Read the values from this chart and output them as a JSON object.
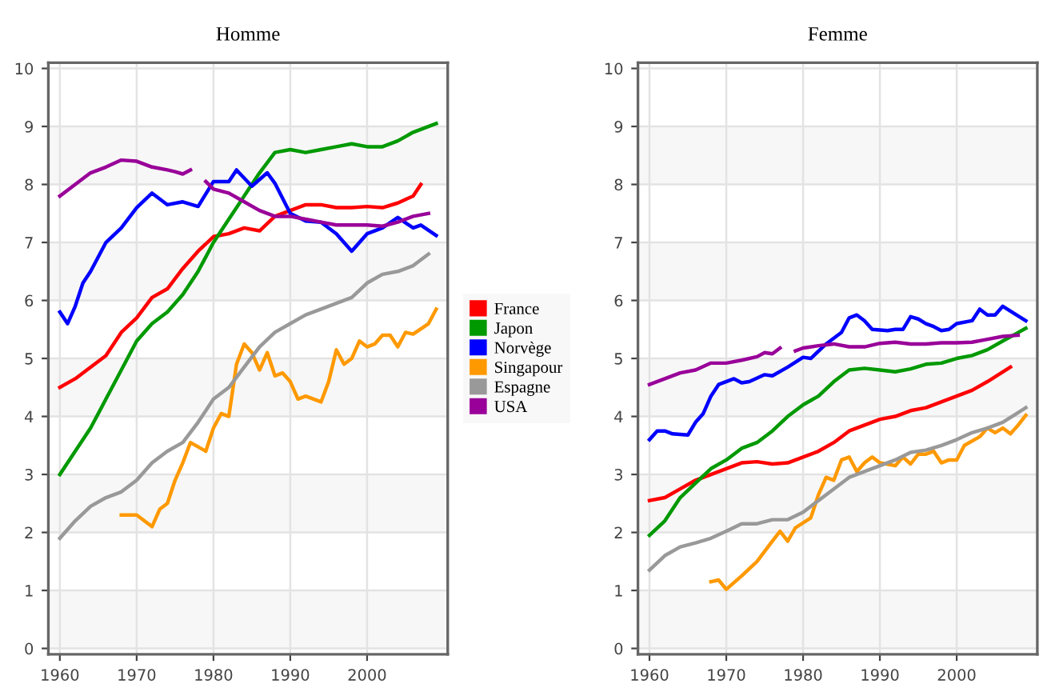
{
  "chart_data": [
    {
      "type": "line",
      "title": "Homme",
      "xlim": [
        1958.5,
        2010.5
      ],
      "ylim": [
        -0.1,
        10.1
      ],
      "xticks": [
        1960,
        1970,
        1980,
        1990,
        2000
      ],
      "yticks": [
        0,
        1,
        2,
        3,
        4,
        5,
        6,
        7,
        8,
        9,
        10
      ],
      "grid": true,
      "legend": "right",
      "line_style": "solid",
      "bands": [
        {
          "axis": "y",
          "from": 0,
          "to": 1,
          "color": "#f7f7f7"
        },
        {
          "axis": "y",
          "from": 2,
          "to": 3,
          "color": "#f7f7f7"
        },
        {
          "axis": "y",
          "from": 4,
          "to": 5,
          "color": "#f7f7f7"
        },
        {
          "axis": "y",
          "from": 6,
          "to": 7,
          "color": "#f7f7f7"
        },
        {
          "axis": "y",
          "from": 8,
          "to": 9,
          "color": "#f7f7f7"
        }
      ],
      "series": [
        {
          "name": "France",
          "color": "#ff0000",
          "x": [
            1960,
            1962,
            1964,
            1966,
            1968,
            1970,
            1972,
            1974,
            1976,
            1978,
            1980,
            1982,
            1984,
            1986,
            1988,
            1990,
            1992,
            1994,
            1996,
            1998,
            2000,
            2002,
            2004,
            2006,
            2007
          ],
          "values": [
            4.5,
            4.65,
            4.85,
            5.05,
            5.45,
            5.7,
            6.05,
            6.2,
            6.55,
            6.85,
            7.1,
            7.15,
            7.25,
            7.2,
            7.45,
            7.55,
            7.65,
            7.65,
            7.6,
            7.6,
            7.62,
            7.6,
            7.68,
            7.8,
            8.0
          ]
        },
        {
          "name": "Japon",
          "color": "#009900",
          "x": [
            1960,
            1962,
            1964,
            1966,
            1968,
            1970,
            1972,
            1974,
            1976,
            1978,
            1980,
            1982,
            1984,
            1986,
            1988,
            1990,
            1992,
            1994,
            1996,
            1998,
            2000,
            2002,
            2004,
            2006,
            2009
          ],
          "values": [
            3.0,
            3.4,
            3.8,
            4.3,
            4.8,
            5.3,
            5.6,
            5.8,
            6.1,
            6.5,
            7.0,
            7.4,
            7.8,
            8.2,
            8.55,
            8.6,
            8.55,
            8.6,
            8.65,
            8.7,
            8.65,
            8.65,
            8.75,
            8.9,
            9.05
          ]
        },
        {
          "name": "Norvège",
          "color": "#0000ff",
          "x": [
            1960,
            1961,
            1962,
            1963,
            1964,
            1966,
            1968,
            1970,
            1972,
            1974,
            1976,
            1978,
            1980,
            1982,
            1983,
            1985,
            1987,
            1988,
            1990,
            1992,
            1994,
            1996,
            1998,
            2000,
            2002,
            2004,
            2006,
            2007,
            2009
          ],
          "values": [
            5.8,
            5.6,
            5.9,
            6.3,
            6.5,
            7.0,
            7.25,
            7.6,
            7.85,
            7.65,
            7.7,
            7.62,
            8.05,
            8.05,
            8.25,
            7.97,
            8.2,
            8.02,
            7.5,
            7.37,
            7.35,
            7.15,
            6.85,
            7.15,
            7.25,
            7.43,
            7.25,
            7.3,
            7.12
          ]
        },
        {
          "name": "Singapour",
          "color": "#ff9900",
          "x": [
            1968,
            1970,
            1972,
            1973,
            1974,
            1975,
            1976,
            1977,
            1979,
            1980,
            1981,
            1982,
            1983,
            1984,
            1985,
            1986,
            1987,
            1988,
            1989,
            1990,
            1991,
            1992,
            1994,
            1995,
            1996,
            1997,
            1998,
            1999,
            2000,
            2001,
            2002,
            2003,
            2004,
            2005,
            2006,
            2008,
            2009
          ],
          "values": [
            2.3,
            2.3,
            2.1,
            2.4,
            2.5,
            2.9,
            3.2,
            3.55,
            3.4,
            3.8,
            4.05,
            4.0,
            4.9,
            5.25,
            5.1,
            4.8,
            5.1,
            4.7,
            4.75,
            4.6,
            4.3,
            4.35,
            4.25,
            4.6,
            5.15,
            4.9,
            5.0,
            5.3,
            5.2,
            5.25,
            5.4,
            5.4,
            5.2,
            5.45,
            5.42,
            5.6,
            5.85
          ]
        },
        {
          "name": "Espagne",
          "color": "#999999",
          "x": [
            1960,
            1962,
            1964,
            1966,
            1968,
            1970,
            1972,
            1974,
            1976,
            1978,
            1980,
            1982,
            1984,
            1986,
            1988,
            1990,
            1992,
            1994,
            1996,
            1998,
            2000,
            2002,
            2004,
            2006,
            2008
          ],
          "values": [
            1.9,
            2.2,
            2.45,
            2.6,
            2.7,
            2.9,
            3.2,
            3.4,
            3.55,
            3.9,
            4.3,
            4.5,
            4.85,
            5.2,
            5.45,
            5.6,
            5.75,
            5.85,
            5.95,
            6.05,
            6.3,
            6.45,
            6.5,
            6.6,
            6.8
          ]
        },
        {
          "name": "USA",
          "color": "#990099",
          "x": [
            1960,
            1962,
            1964,
            1966,
            1968,
            1970,
            1972,
            1974,
            1975,
            1976,
            1977,
            1978,
            1979,
            1980,
            1982,
            1984,
            1986,
            1988,
            1990,
            1992,
            1994,
            1996,
            1998,
            2000,
            2002,
            2004,
            2006,
            2008
          ],
          "values": [
            7.8,
            8.0,
            8.2,
            8.3,
            8.42,
            8.4,
            8.3,
            8.25,
            8.22,
            8.18,
            8.25,
            null,
            8.05,
            7.92,
            7.85,
            7.7,
            7.55,
            7.45,
            7.45,
            7.4,
            7.35,
            7.3,
            7.3,
            7.3,
            7.28,
            7.35,
            7.45,
            7.5
          ]
        }
      ]
    },
    {
      "type": "line",
      "title": "Femme",
      "xlim": [
        1958.5,
        2010.5
      ],
      "ylim": [
        -0.1,
        10.1
      ],
      "xticks": [
        1960,
        1970,
        1980,
        1990,
        2000
      ],
      "yticks": [
        0,
        1,
        2,
        3,
        4,
        5,
        6,
        7,
        8,
        9,
        10
      ],
      "grid": true,
      "line_style": "solid",
      "bands": [
        {
          "axis": "y",
          "from": 0,
          "to": 1,
          "color": "#f7f7f7"
        },
        {
          "axis": "y",
          "from": 2,
          "to": 3,
          "color": "#f7f7f7"
        },
        {
          "axis": "y",
          "from": 4,
          "to": 5,
          "color": "#f7f7f7"
        },
        {
          "axis": "y",
          "from": 6,
          "to": 7,
          "color": "#f7f7f7"
        },
        {
          "axis": "y",
          "from": 8,
          "to": 9,
          "color": "#f7f7f7"
        }
      ],
      "series": [
        {
          "color": "#ff0000",
          "x": [
            1960,
            1962,
            1964,
            1966,
            1968,
            1970,
            1972,
            1974,
            1976,
            1978,
            1980,
            1982,
            1984,
            1986,
            1988,
            1990,
            1992,
            1994,
            1996,
            1998,
            2000,
            2002,
            2004,
            2007
          ],
          "values": [
            2.55,
            2.6,
            2.75,
            2.9,
            3.0,
            3.1,
            3.2,
            3.22,
            3.18,
            3.2,
            3.3,
            3.4,
            3.55,
            3.75,
            3.85,
            3.95,
            4.0,
            4.1,
            4.15,
            4.25,
            4.35,
            4.45,
            4.6,
            4.85
          ]
        },
        {
          "color": "#009900",
          "x": [
            1960,
            1962,
            1964,
            1966,
            1968,
            1970,
            1972,
            1974,
            1976,
            1978,
            1980,
            1982,
            1984,
            1986,
            1988,
            1990,
            1992,
            1994,
            1996,
            1998,
            2000,
            2002,
            2004,
            2006,
            2009
          ],
          "values": [
            1.95,
            2.2,
            2.6,
            2.85,
            3.1,
            3.25,
            3.45,
            3.55,
            3.75,
            4.0,
            4.2,
            4.35,
            4.6,
            4.8,
            4.83,
            4.8,
            4.77,
            4.82,
            4.9,
            4.92,
            5.0,
            5.05,
            5.15,
            5.3,
            5.52
          ]
        },
        {
          "color": "#0000ff",
          "x": [
            1960,
            1961,
            1962,
            1963,
            1965,
            1966,
            1967,
            1968,
            1969,
            1971,
            1972,
            1973,
            1975,
            1976,
            1978,
            1980,
            1981,
            1983,
            1985,
            1986,
            1987,
            1988,
            1989,
            1991,
            1992,
            1993,
            1994,
            1995,
            1996,
            1997,
            1998,
            1999,
            2000,
            2002,
            2003,
            2004,
            2005,
            2006,
            2009
          ],
          "values": [
            3.6,
            3.75,
            3.75,
            3.7,
            3.68,
            3.9,
            4.05,
            4.35,
            4.55,
            4.65,
            4.58,
            4.6,
            4.72,
            4.7,
            4.85,
            5.02,
            5.0,
            5.25,
            5.45,
            5.7,
            5.75,
            5.65,
            5.5,
            5.48,
            5.5,
            5.5,
            5.72,
            5.68,
            5.6,
            5.55,
            5.48,
            5.5,
            5.6,
            5.65,
            5.85,
            5.75,
            5.75,
            5.9,
            5.65
          ]
        },
        {
          "color": "#ff9900",
          "x": [
            1968,
            1969,
            1970,
            1972,
            1974,
            1976,
            1977,
            1978,
            1979,
            1981,
            1982,
            1983,
            1984,
            1985,
            1986,
            1987,
            1988,
            1989,
            1990,
            1992,
            1993,
            1994,
            1995,
            1996,
            1997,
            1998,
            1999,
            2000,
            2001,
            2003,
            2004,
            2005,
            2006,
            2007,
            2008,
            2009
          ],
          "values": [
            1.15,
            1.18,
            1.02,
            1.25,
            1.5,
            1.85,
            2.02,
            1.85,
            2.08,
            2.25,
            2.65,
            2.95,
            2.9,
            3.25,
            3.3,
            3.05,
            3.2,
            3.3,
            3.2,
            3.15,
            3.3,
            3.18,
            3.35,
            3.35,
            3.4,
            3.2,
            3.25,
            3.25,
            3.5,
            3.65,
            3.8,
            3.72,
            3.8,
            3.7,
            3.85,
            4.02
          ]
        },
        {
          "color": "#999999",
          "x": [
            1960,
            1962,
            1964,
            1966,
            1968,
            1970,
            1972,
            1974,
            1976,
            1978,
            1980,
            1982,
            1984,
            1986,
            1988,
            1990,
            1992,
            1994,
            1996,
            1998,
            2000,
            2002,
            2004,
            2006,
            2009
          ],
          "values": [
            1.35,
            1.6,
            1.75,
            1.82,
            1.9,
            2.02,
            2.15,
            2.15,
            2.22,
            2.22,
            2.35,
            2.55,
            2.75,
            2.95,
            3.05,
            3.15,
            3.25,
            3.38,
            3.42,
            3.5,
            3.6,
            3.72,
            3.8,
            3.9,
            4.15
          ]
        },
        {
          "color": "#990099",
          "x": [
            1960,
            1962,
            1964,
            1966,
            1968,
            1970,
            1972,
            1974,
            1975,
            1976,
            1977,
            1978,
            1979,
            1980,
            1982,
            1984,
            1986,
            1988,
            1990,
            1992,
            1994,
            1996,
            1998,
            2000,
            2002,
            2004,
            2006,
            2008
          ],
          "values": [
            4.55,
            4.65,
            4.75,
            4.8,
            4.92,
            4.92,
            4.97,
            5.03,
            5.1,
            5.08,
            5.18,
            null,
            5.13,
            5.18,
            5.22,
            5.25,
            5.2,
            5.2,
            5.26,
            5.28,
            5.25,
            5.25,
            5.27,
            5.27,
            5.28,
            5.33,
            5.38,
            5.4
          ]
        }
      ]
    }
  ]
}
